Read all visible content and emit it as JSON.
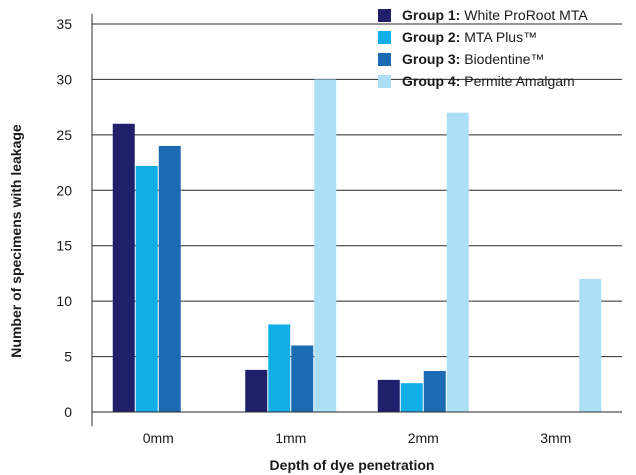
{
  "chart_data": {
    "type": "bar",
    "categories": [
      "0mm",
      "1mm",
      "2mm",
      "3mm"
    ],
    "series": [
      {
        "name": "Group 1:",
        "description": "White ProRoot MTA",
        "color": "#1f1f6b",
        "values": [
          26,
          3.8,
          2.9,
          0
        ]
      },
      {
        "name": "Group 2:",
        "description": "MTA Plus™",
        "color": "#12aee8",
        "values": [
          22.2,
          7.9,
          2.6,
          0
        ]
      },
      {
        "name": "Group 3:",
        "description": " Biodentine™",
        "color": "#1b6bb3",
        "values": [
          24,
          6,
          3.7,
          0
        ]
      },
      {
        "name": "Group 4:",
        "description": "Permite Amalgam",
        "color": "#aadff6",
        "values": [
          0,
          30,
          27,
          12
        ]
      }
    ],
    "xlabel": "Depth of dye penetration",
    "ylabel": "Number of specimens with leakage",
    "ylim": [
      0,
      35
    ],
    "yticks": [
      "0",
      "5",
      "10",
      "15",
      "20",
      "25",
      "30",
      "35"
    ],
    "grid": true,
    "legend_position": "top-right"
  }
}
